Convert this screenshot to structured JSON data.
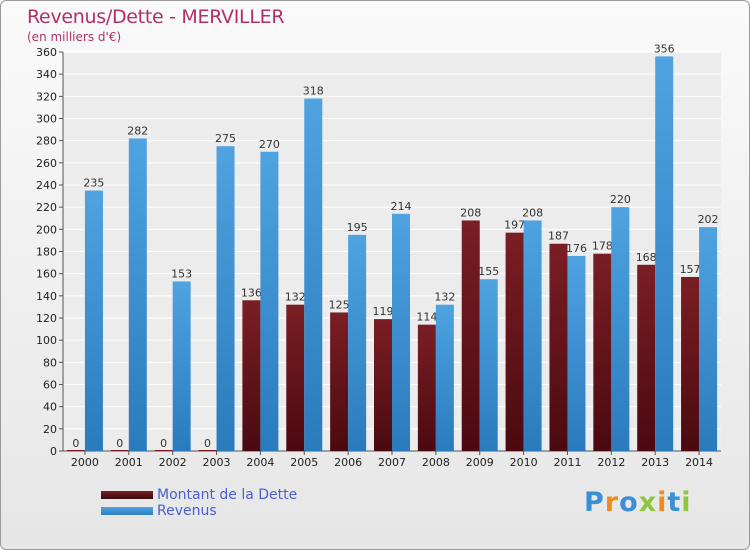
{
  "header": {
    "title": "Revenus/Dette - MERVILLER",
    "subtitle": "(en milliers d'€)"
  },
  "colors": {
    "dette": "#7a1e24",
    "revenus": "#4fa3e0",
    "title": "#b0306a"
  },
  "chart_data": {
    "type": "bar",
    "title": "Revenus/Dette - MERVILLER",
    "subtitle": "(en milliers d'€)",
    "categories": [
      "2000",
      "2001",
      "2002",
      "2003",
      "2004",
      "2005",
      "2006",
      "2007",
      "2008",
      "2009",
      "2010",
      "2011",
      "2012",
      "2013",
      "2014"
    ],
    "series": [
      {
        "name": "Montant de la Dette",
        "values": [
          0,
          0,
          0,
          0,
          136,
          132,
          125,
          119,
          114,
          208,
          197,
          187,
          178,
          168,
          157
        ]
      },
      {
        "name": "Revenus",
        "values": [
          235,
          282,
          153,
          275,
          270,
          318,
          195,
          214,
          132,
          155,
          208,
          176,
          220,
          356,
          202
        ]
      }
    ],
    "ylim": [
      0,
      360
    ],
    "yticks": [
      0,
      20,
      40,
      60,
      80,
      100,
      120,
      140,
      160,
      180,
      200,
      220,
      240,
      260,
      280,
      300,
      320,
      340,
      360
    ],
    "grid": true,
    "legend_position": "bottom-left"
  },
  "legend": {
    "items": [
      {
        "label": "Montant de la Dette"
      },
      {
        "label": "Revenus"
      }
    ]
  },
  "logo": {
    "letters": [
      "P",
      "r",
      "o",
      "x",
      "i",
      "t",
      "i"
    ],
    "colors": [
      "#3a8fd6",
      "#f08c1e",
      "#3a8fd6",
      "#8dc63f",
      "#f08c1e",
      "#3a8fd6",
      "#8dc63f"
    ]
  }
}
